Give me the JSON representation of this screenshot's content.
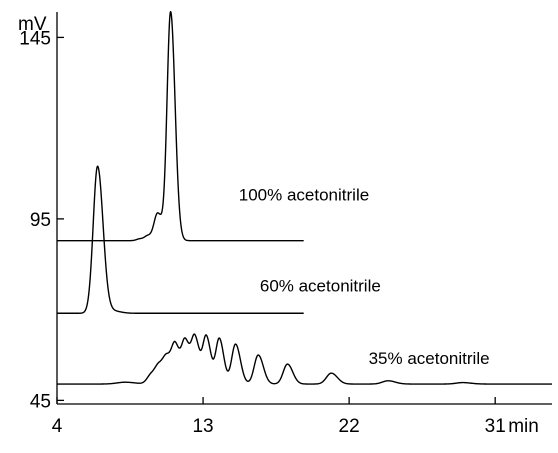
{
  "chart_data": {
    "type": "line",
    "title": "",
    "xlabel": "",
    "ylabel": "",
    "x_unit": "min",
    "y_unit": "mV",
    "xlim": [
      4,
      34.5
    ],
    "ylim": [
      44,
      152
    ],
    "x_ticks": [
      4,
      13,
      22,
      31
    ],
    "y_ticks": [
      45,
      95,
      145
    ],
    "grid": false,
    "series": [
      {
        "name": "100% acetonitrile",
        "baseline": 89,
        "x_end": 19.2,
        "label_pos": [
          15.2,
          100
        ],
        "peaks": [
          {
            "x": 9.1,
            "height": 0.5,
            "width": 0.2
          },
          {
            "x": 9.6,
            "height": 1.3,
            "width": 0.2
          },
          {
            "x": 10.2,
            "height": 7.5,
            "width": 0.22
          },
          {
            "x": 11.0,
            "height": 63.0,
            "width": 0.22
          }
        ]
      },
      {
        "name": "60% acetonitrile",
        "baseline": 69,
        "x_end": 19.2,
        "label_pos": [
          16.5,
          75
        ],
        "peaks": [
          {
            "x": 6.5,
            "height": 40.5,
            "width": 0.27
          },
          {
            "x": 7.5,
            "height": 0.6,
            "width": 0.35
          }
        ]
      },
      {
        "name": "35% acetonitrile",
        "baseline": 49.5,
        "x_end": 34.5,
        "label_pos": [
          23.2,
          55
        ],
        "peaks": [
          {
            "x": 8.2,
            "height": 0.5,
            "width": 0.5
          },
          {
            "x": 9.8,
            "height": 2.5,
            "width": 0.25
          },
          {
            "x": 10.3,
            "height": 4.5,
            "width": 0.25
          },
          {
            "x": 10.8,
            "height": 6.5,
            "width": 0.25
          },
          {
            "x": 11.3,
            "height": 9.5,
            "width": 0.22
          },
          {
            "x": 11.9,
            "height": 11.5,
            "width": 0.22
          },
          {
            "x": 12.5,
            "height": 12.5,
            "width": 0.22
          },
          {
            "x": 13.2,
            "height": 13.0,
            "width": 0.22
          },
          {
            "x": 14.0,
            "height": 12.5,
            "width": 0.22
          },
          {
            "x": 15.0,
            "height": 11.0,
            "width": 0.24
          },
          {
            "x": 16.4,
            "height": 8.0,
            "width": 0.25
          },
          {
            "x": 18.2,
            "height": 5.5,
            "width": 0.26
          },
          {
            "x": 20.9,
            "height": 3.0,
            "width": 0.3
          },
          {
            "x": 24.4,
            "height": 0.9,
            "width": 0.35
          },
          {
            "x": 29.0,
            "height": 0.4,
            "width": 0.4
          }
        ]
      }
    ]
  }
}
